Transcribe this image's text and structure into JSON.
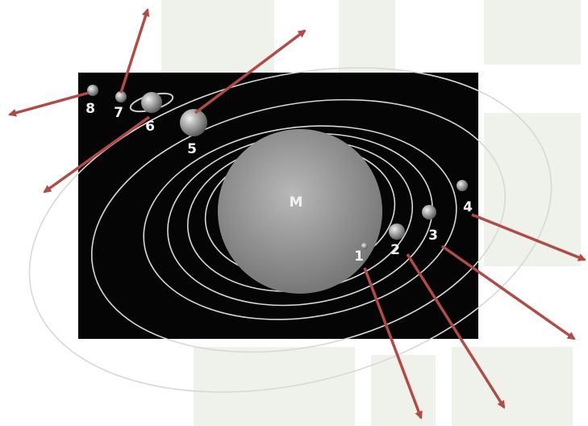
{
  "center_label": "M",
  "planets": [
    {
      "label": "1"
    },
    {
      "label": "2"
    },
    {
      "label": "3"
    },
    {
      "label": "4"
    },
    {
      "label": "5"
    },
    {
      "label": "6"
    },
    {
      "label": "7"
    },
    {
      "label": "8"
    }
  ]
}
